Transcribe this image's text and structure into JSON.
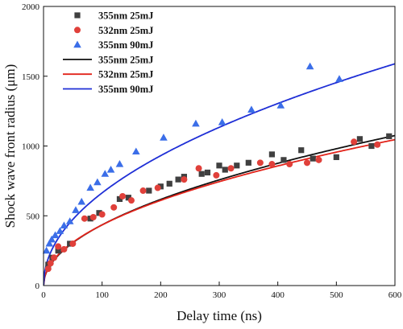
{
  "chart_data": {
    "type": "scatter",
    "xlabel": "Delay time (ns)",
    "ylabel": "Shock wave front radius (μm)",
    "xlim": [
      0,
      600
    ],
    "ylim": [
      0,
      2000
    ],
    "xticks": [
      0,
      100,
      200,
      300,
      400,
      500,
      600
    ],
    "yticks": [
      0,
      500,
      1000,
      1500,
      2000
    ],
    "grid": false,
    "legend_position": "top-left",
    "series": [
      {
        "name": "355nm 25mJ",
        "kind": "points",
        "marker": "square",
        "color": "#404040",
        "points": [
          [
            8,
            150
          ],
          [
            15,
            200
          ],
          [
            25,
            250
          ],
          [
            45,
            300
          ],
          [
            80,
            480
          ],
          [
            95,
            520
          ],
          [
            130,
            620
          ],
          [
            145,
            630
          ],
          [
            180,
            680
          ],
          [
            200,
            710
          ],
          [
            215,
            730
          ],
          [
            230,
            760
          ],
          [
            240,
            780
          ],
          [
            270,
            800
          ],
          [
            280,
            810
          ],
          [
            300,
            860
          ],
          [
            310,
            830
          ],
          [
            330,
            860
          ],
          [
            350,
            880
          ],
          [
            390,
            940
          ],
          [
            410,
            900
          ],
          [
            440,
            970
          ],
          [
            460,
            910
          ],
          [
            500,
            920
          ],
          [
            540,
            1050
          ],
          [
            560,
            1000
          ],
          [
            590,
            1070
          ]
        ]
      },
      {
        "name": "532nm 25mJ",
        "kind": "points",
        "marker": "circle",
        "color": "#e0403a",
        "points": [
          [
            8,
            120
          ],
          [
            12,
            160
          ],
          [
            18,
            200
          ],
          [
            25,
            280
          ],
          [
            35,
            260
          ],
          [
            50,
            300
          ],
          [
            70,
            480
          ],
          [
            85,
            490
          ],
          [
            100,
            510
          ],
          [
            120,
            560
          ],
          [
            135,
            640
          ],
          [
            150,
            610
          ],
          [
            170,
            680
          ],
          [
            195,
            700
          ],
          [
            240,
            760
          ],
          [
            265,
            840
          ],
          [
            295,
            790
          ],
          [
            320,
            840
          ],
          [
            370,
            880
          ],
          [
            390,
            870
          ],
          [
            420,
            870
          ],
          [
            450,
            880
          ],
          [
            470,
            900
          ],
          [
            530,
            1030
          ],
          [
            570,
            1010
          ]
        ]
      },
      {
        "name": "355nm 90mJ",
        "kind": "points",
        "marker": "triangle",
        "color": "#3b6ee8",
        "points": [
          [
            5,
            250
          ],
          [
            10,
            300
          ],
          [
            14,
            330
          ],
          [
            20,
            360
          ],
          [
            28,
            390
          ],
          [
            35,
            430
          ],
          [
            45,
            460
          ],
          [
            55,
            540
          ],
          [
            65,
            600
          ],
          [
            80,
            700
          ],
          [
            92,
            740
          ],
          [
            105,
            800
          ],
          [
            115,
            830
          ],
          [
            130,
            870
          ],
          [
            158,
            960
          ],
          [
            205,
            1060
          ],
          [
            260,
            1160
          ],
          [
            305,
            1170
          ],
          [
            355,
            1260
          ],
          [
            405,
            1290
          ],
          [
            455,
            1570
          ],
          [
            505,
            1480
          ]
        ]
      },
      {
        "name": "355nm 25mJ",
        "kind": "fit",
        "color": "#111111",
        "a": 42.5,
        "b": 0.505
      },
      {
        "name": "532nm 25mJ",
        "kind": "fit",
        "color": "#e2231a",
        "a": 45.5,
        "b": 0.49
      },
      {
        "name": "355nm 90mJ",
        "kind": "fit",
        "color": "#1f2fd6",
        "a": 70.5,
        "b": 0.487
      }
    ]
  }
}
